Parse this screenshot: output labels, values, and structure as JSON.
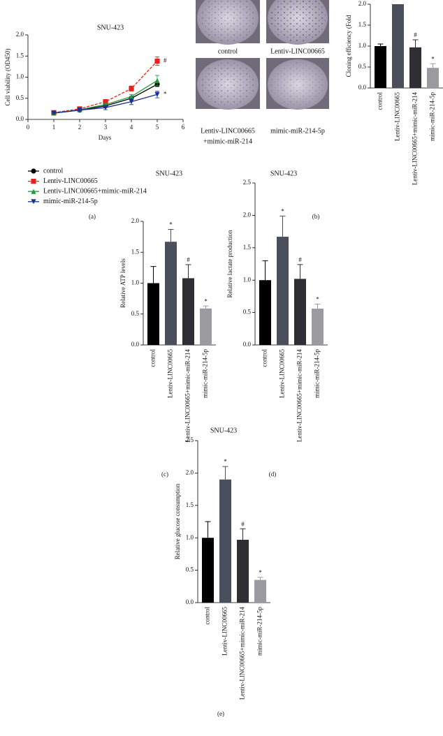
{
  "figure": {
    "panel_labels": [
      "(a)",
      "(b)",
      "(c)",
      "(d)",
      "(e)"
    ],
    "photo_captions": [
      [
        "control"
      ],
      [
        "Lentiv-LINC00665"
      ],
      [
        "Lentiv-LINC00665",
        "+mimic-miR-214"
      ],
      [
        "mimic-miR-214-5p"
      ]
    ]
  },
  "chart_data": [
    {
      "type": "line",
      "title": "SNU-423",
      "xlabel": "Days",
      "ylabel": "Cell viability (OD450)",
      "x": [
        1,
        2,
        3,
        4,
        5
      ],
      "xlim": [
        0,
        6
      ],
      "xticks": [
        0,
        1,
        2,
        3,
        4,
        5,
        6
      ],
      "ylim": [
        0,
        2
      ],
      "yticks": [
        {
          "value": 0,
          "label": "0.0"
        },
        0.5,
        {
          "value": 1,
          "label": "1.0"
        },
        1.5,
        {
          "value": 2,
          "label": "2.0"
        }
      ],
      "series": [
        {
          "name": "control",
          "color": "#000000",
          "marker": "circle",
          "dashed": false,
          "values": [
            0.15,
            0.22,
            0.32,
            0.5,
            0.83
          ],
          "errors": [
            0.02,
            0.02,
            0.03,
            0.04,
            0.05
          ],
          "annotations": [
            null,
            null,
            null,
            null,
            null
          ]
        },
        {
          "name": "Lentiv-LINC00665",
          "color": "#e3231c",
          "marker": "square",
          "dashed": true,
          "values": [
            0.16,
            0.25,
            0.42,
            0.73,
            1.38
          ],
          "errors": [
            0.02,
            0.03,
            0.04,
            0.06,
            0.1
          ],
          "annotations": [
            null,
            null,
            null,
            null,
            "#"
          ]
        },
        {
          "name": "Lentiv-LINC00665+mimic-miR-214",
          "color": "#1f9a3a",
          "marker": "triangle",
          "dashed": false,
          "values": [
            0.15,
            0.23,
            0.35,
            0.54,
            0.92
          ],
          "errors": [
            0.02,
            0.02,
            0.03,
            0.05,
            0.12
          ],
          "annotations": [
            null,
            null,
            null,
            null,
            null
          ]
        },
        {
          "name": "mimic-miR-214-5p",
          "color": "#1c2f8f",
          "marker": "triangle-down",
          "dashed": false,
          "values": [
            0.15,
            0.22,
            0.28,
            0.42,
            0.59
          ],
          "errors": [
            0.02,
            0.02,
            0.05,
            0.07,
            0.08
          ],
          "annotations": [
            null,
            null,
            null,
            null,
            "*"
          ]
        }
      ]
    },
    {
      "type": "bar",
      "ylabel": "Cloning efficiency (Fold",
      "categories": [
        "control",
        "Lentiv-LINC00665",
        "Lentiv-LINC00665+mimic-miR-214",
        "mimic-miR-214-5p"
      ],
      "values": [
        1.0,
        2.0,
        0.97,
        0.48
      ],
      "errors": [
        0.05,
        null,
        0.18,
        0.1
      ],
      "annotations": [
        null,
        null,
        "#",
        "*"
      ],
      "colors": [
        "#000000",
        "#4b4f5c",
        "#2e2e33",
        "#9a9a9f"
      ],
      "ylim": [
        0,
        2
      ],
      "yticks": [
        {
          "value": 0,
          "label": "0.0"
        },
        0.5,
        {
          "value": 1,
          "label": "1.0"
        },
        1.5,
        {
          "value": 2,
          "label": "2.0"
        }
      ]
    },
    {
      "type": "bar",
      "title": "SNU-423",
      "ylabel": "Relative ATP levels",
      "categories": [
        "control",
        "Lentiv-LINC00665",
        "Lentiv-LINC00665+mimic-miR-214",
        "mimic-miR-214-5p"
      ],
      "values": [
        1.0,
        1.67,
        1.08,
        0.59
      ],
      "errors": [
        0.27,
        0.2,
        0.22,
        0.04
      ],
      "annotations": [
        null,
        "*",
        "#",
        "*"
      ],
      "colors": [
        "#000000",
        "#4b4f5c",
        "#2e2e33",
        "#9a9a9f"
      ],
      "ylim": [
        0,
        2
      ],
      "yticks": [
        {
          "value": 0,
          "label": "0.0"
        },
        0.5,
        {
          "value": 1,
          "label": "1.0"
        },
        1.5,
        {
          "value": 2,
          "label": "2.0"
        }
      ]
    },
    {
      "type": "bar",
      "title": "SNU-423",
      "ylabel": "Relative lactate production",
      "categories": [
        "control",
        "Lentiv-LINC00665",
        "Lentiv-LINC00665+mimic-miR-214",
        "mimic-miR-214-5p"
      ],
      "values": [
        1.0,
        1.67,
        1.02,
        0.56
      ],
      "errors": [
        0.3,
        0.32,
        0.22,
        0.07
      ],
      "annotations": [
        null,
        "*",
        "#",
        "*"
      ],
      "colors": [
        "#000000",
        "#4b4f5c",
        "#2e2e33",
        "#9a9a9f"
      ],
      "ylim": [
        0,
        2.5
      ],
      "yticks": [
        {
          "value": 0,
          "label": "0.0"
        },
        0.5,
        {
          "value": 1,
          "label": "1.0"
        },
        1.5,
        {
          "value": 2,
          "label": "2.0"
        },
        2.5
      ]
    },
    {
      "type": "bar",
      "title": "SNU-423",
      "ylabel": "Relative glucose consumption",
      "categories": [
        "control",
        "Lentiv-LINC00665",
        "Lentiv-LINC00665+mimic-miR-214",
        "mimic-miR-214-5p"
      ],
      "values": [
        1.0,
        1.9,
        0.97,
        0.35
      ],
      "errors": [
        0.25,
        0.2,
        0.17,
        0.04
      ],
      "annotations": [
        null,
        "*",
        "#",
        "*"
      ],
      "colors": [
        "#000000",
        "#4b4f5c",
        "#2e2e33",
        "#9a9a9f"
      ],
      "ylim": [
        0,
        2.5
      ],
      "yticks": [
        {
          "value": 0,
          "label": "0.0"
        },
        0.5,
        {
          "value": 1,
          "label": "1.0"
        },
        1.5,
        {
          "value": 2,
          "label": "2.0"
        },
        2.5
      ]
    }
  ]
}
